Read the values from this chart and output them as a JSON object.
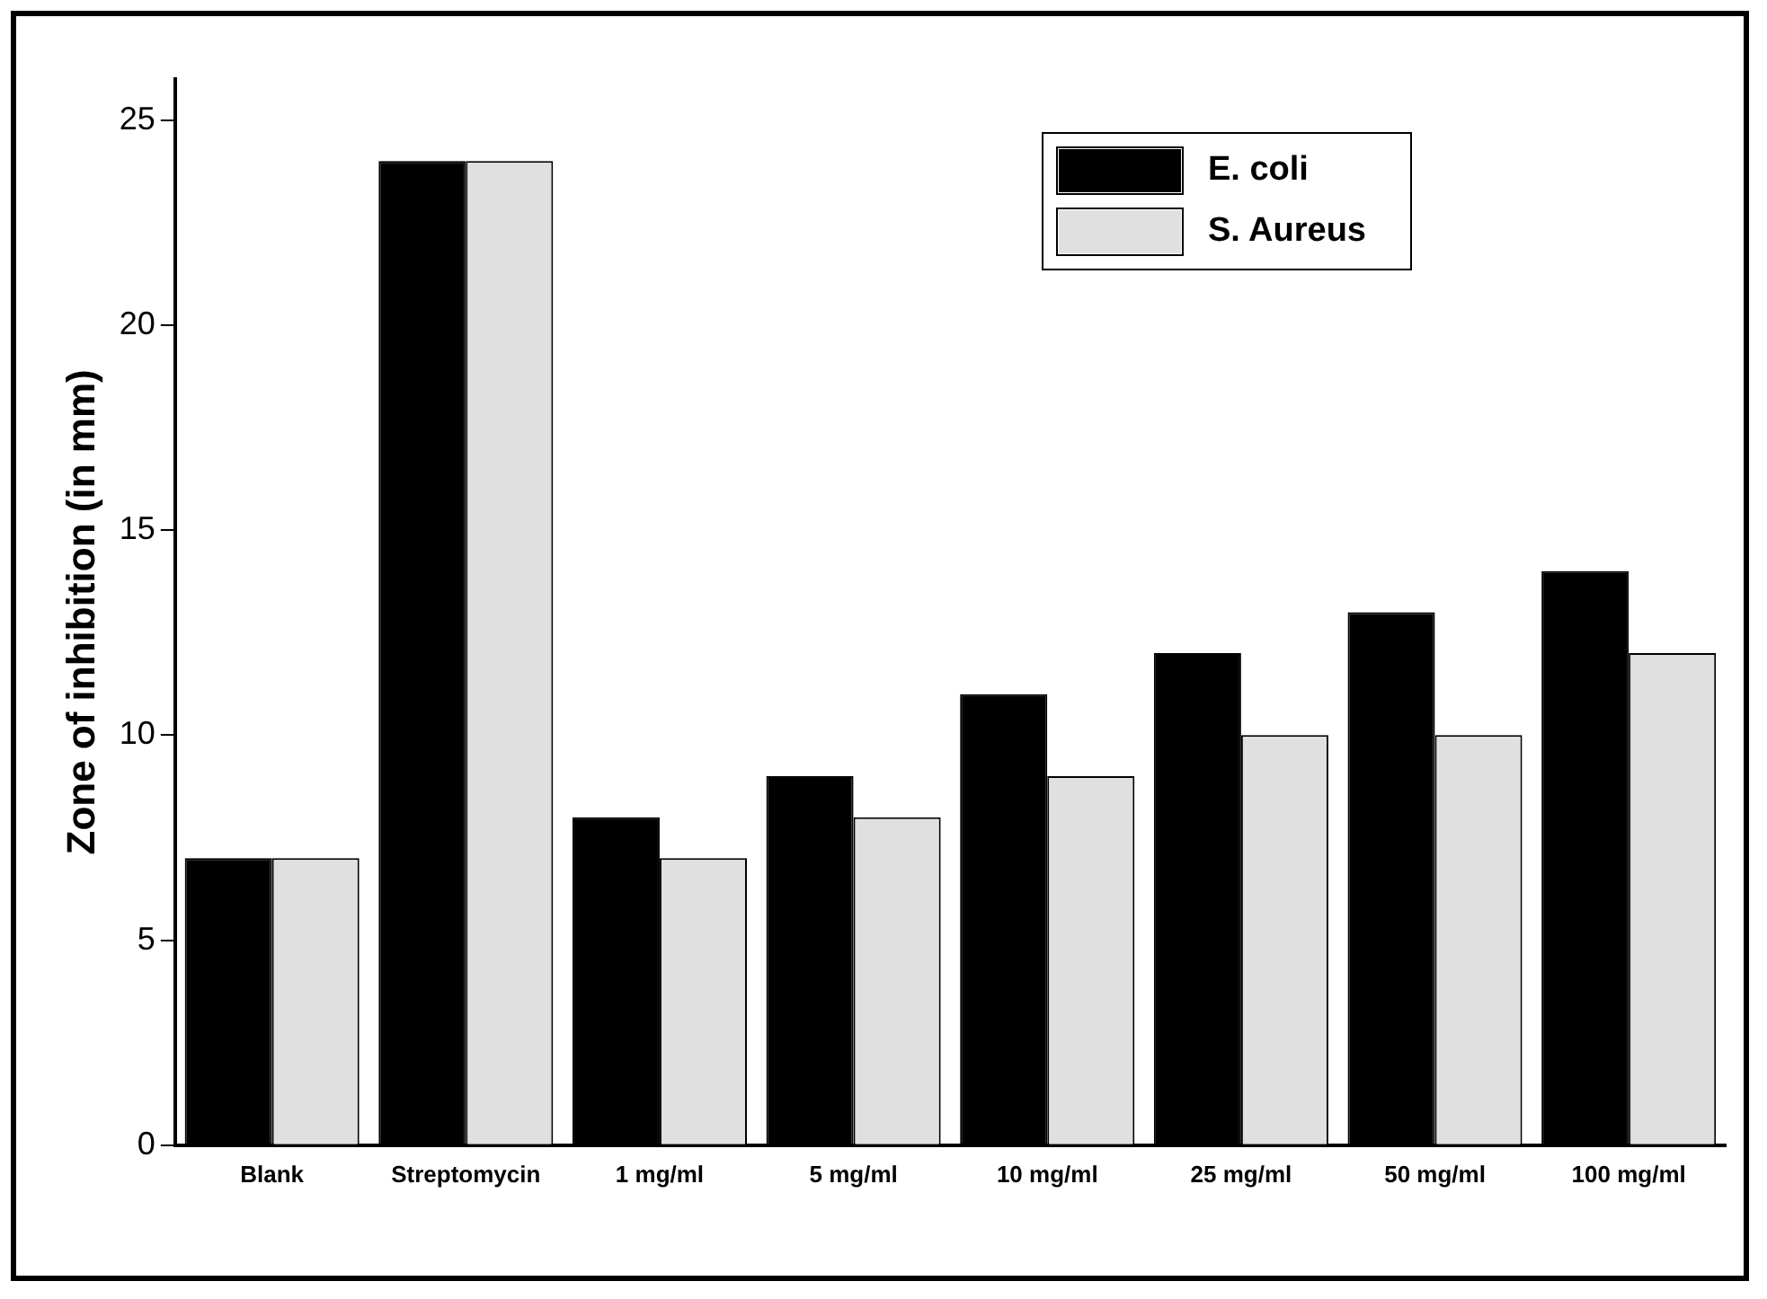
{
  "chart_data": {
    "type": "bar",
    "ylabel": "Zone of inhibition (in mm)",
    "categories": [
      "Blank",
      "Streptomycin",
      "1 mg/ml",
      "5 mg/ml",
      "10 mg/ml",
      "25 mg/ml",
      "50 mg/ml",
      "100 mg/ml"
    ],
    "series": [
      {
        "name": "E. coli",
        "color": "#000000",
        "values": [
          7,
          24,
          8,
          9,
          11,
          12,
          13,
          14
        ]
      },
      {
        "name": "S. Aureus",
        "color": "#e0e0e0",
        "values": [
          7,
          24,
          7,
          8,
          9,
          10,
          10,
          12
        ]
      }
    ],
    "ylim": [
      0,
      26
    ],
    "yticks": [
      0,
      5,
      10,
      15,
      20,
      25
    ],
    "grid": false,
    "legend": "top right"
  }
}
